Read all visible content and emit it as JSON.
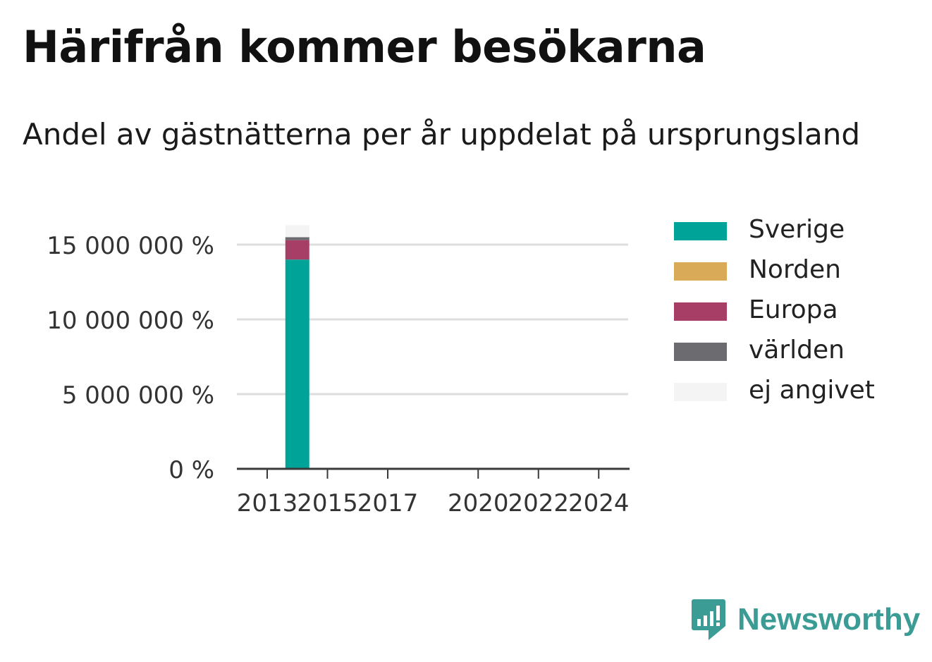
{
  "title": "Härifrån kommer besökarna",
  "subtitle": "Andel av gästnätterna per år uppdelat på ursprungsland",
  "brand": {
    "name": "Newsworthy",
    "icon": "newsworthy-logo-icon",
    "color": "#3a9c95"
  },
  "chart_data": {
    "type": "bar",
    "stacked": true,
    "x": [
      2014
    ],
    "x_ticks": [
      "2013",
      "2015",
      "2017",
      "2020",
      "2022",
      "2024"
    ],
    "xlim": [
      2012.5,
      2025
    ],
    "y_ticks": [
      "0 %",
      "5 000 000 %",
      "10 000 000 %",
      "15 000 000 %"
    ],
    "ylim": [
      0,
      16000000
    ],
    "grid": true,
    "legend_position": "right",
    "series": [
      {
        "name": "Sverige",
        "color": "#00a398",
        "values": [
          14000000
        ]
      },
      {
        "name": "Norden",
        "color": "#d9aa57",
        "values": [
          0
        ]
      },
      {
        "name": "Europa",
        "color": "#a63e66",
        "values": [
          1300000
        ]
      },
      {
        "name": "världen",
        "color": "#6b6b70",
        "values": [
          200000
        ]
      },
      {
        "name": "ej angivet",
        "color": "#f4f4f4",
        "values": [
          800000
        ]
      }
    ]
  }
}
